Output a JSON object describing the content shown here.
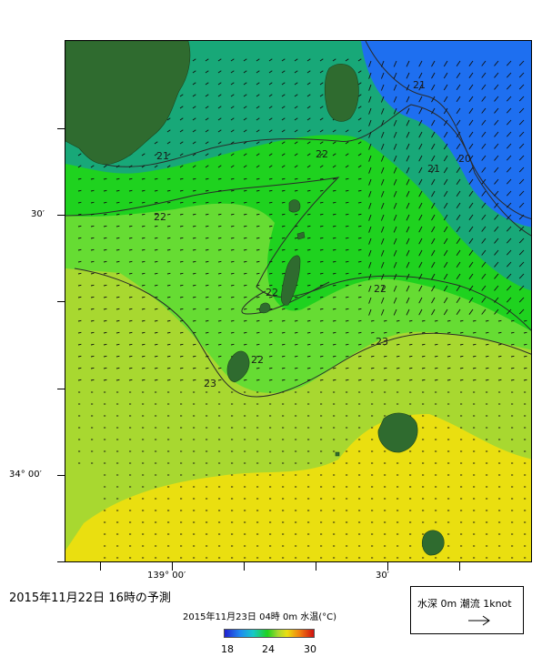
{
  "map": {
    "lat_labels": [
      "30′",
      "34° 00′"
    ],
    "lon_labels": [
      "139° 00′",
      "30′"
    ],
    "contour_labels": [
      "20",
      "21",
      "21",
      "21",
      "22",
      "22",
      "22",
      "22",
      "22",
      "23",
      "23"
    ],
    "colors": {
      "land": "#2f6b2f",
      "sst_20": "#1e6ff0",
      "sst_21": "#18a878",
      "sst_22": "#1fd21f",
      "sst_22_5": "#66dc33",
      "sst_23": "#a8d830",
      "sst_24": "#eadf10"
    }
  },
  "caption": {
    "main": "2015年11月22日  16時の予測",
    "sub": "2015年11月23日 04時 0m 水温(°C)"
  },
  "colorbar": {
    "min_label": "18",
    "mid_label": "24",
    "max_label": "30",
    "min": 18,
    "max": 30
  },
  "legend": {
    "title": "水深 0m  潮流  1knot",
    "arrow_icon": "arrow-right-icon"
  }
}
